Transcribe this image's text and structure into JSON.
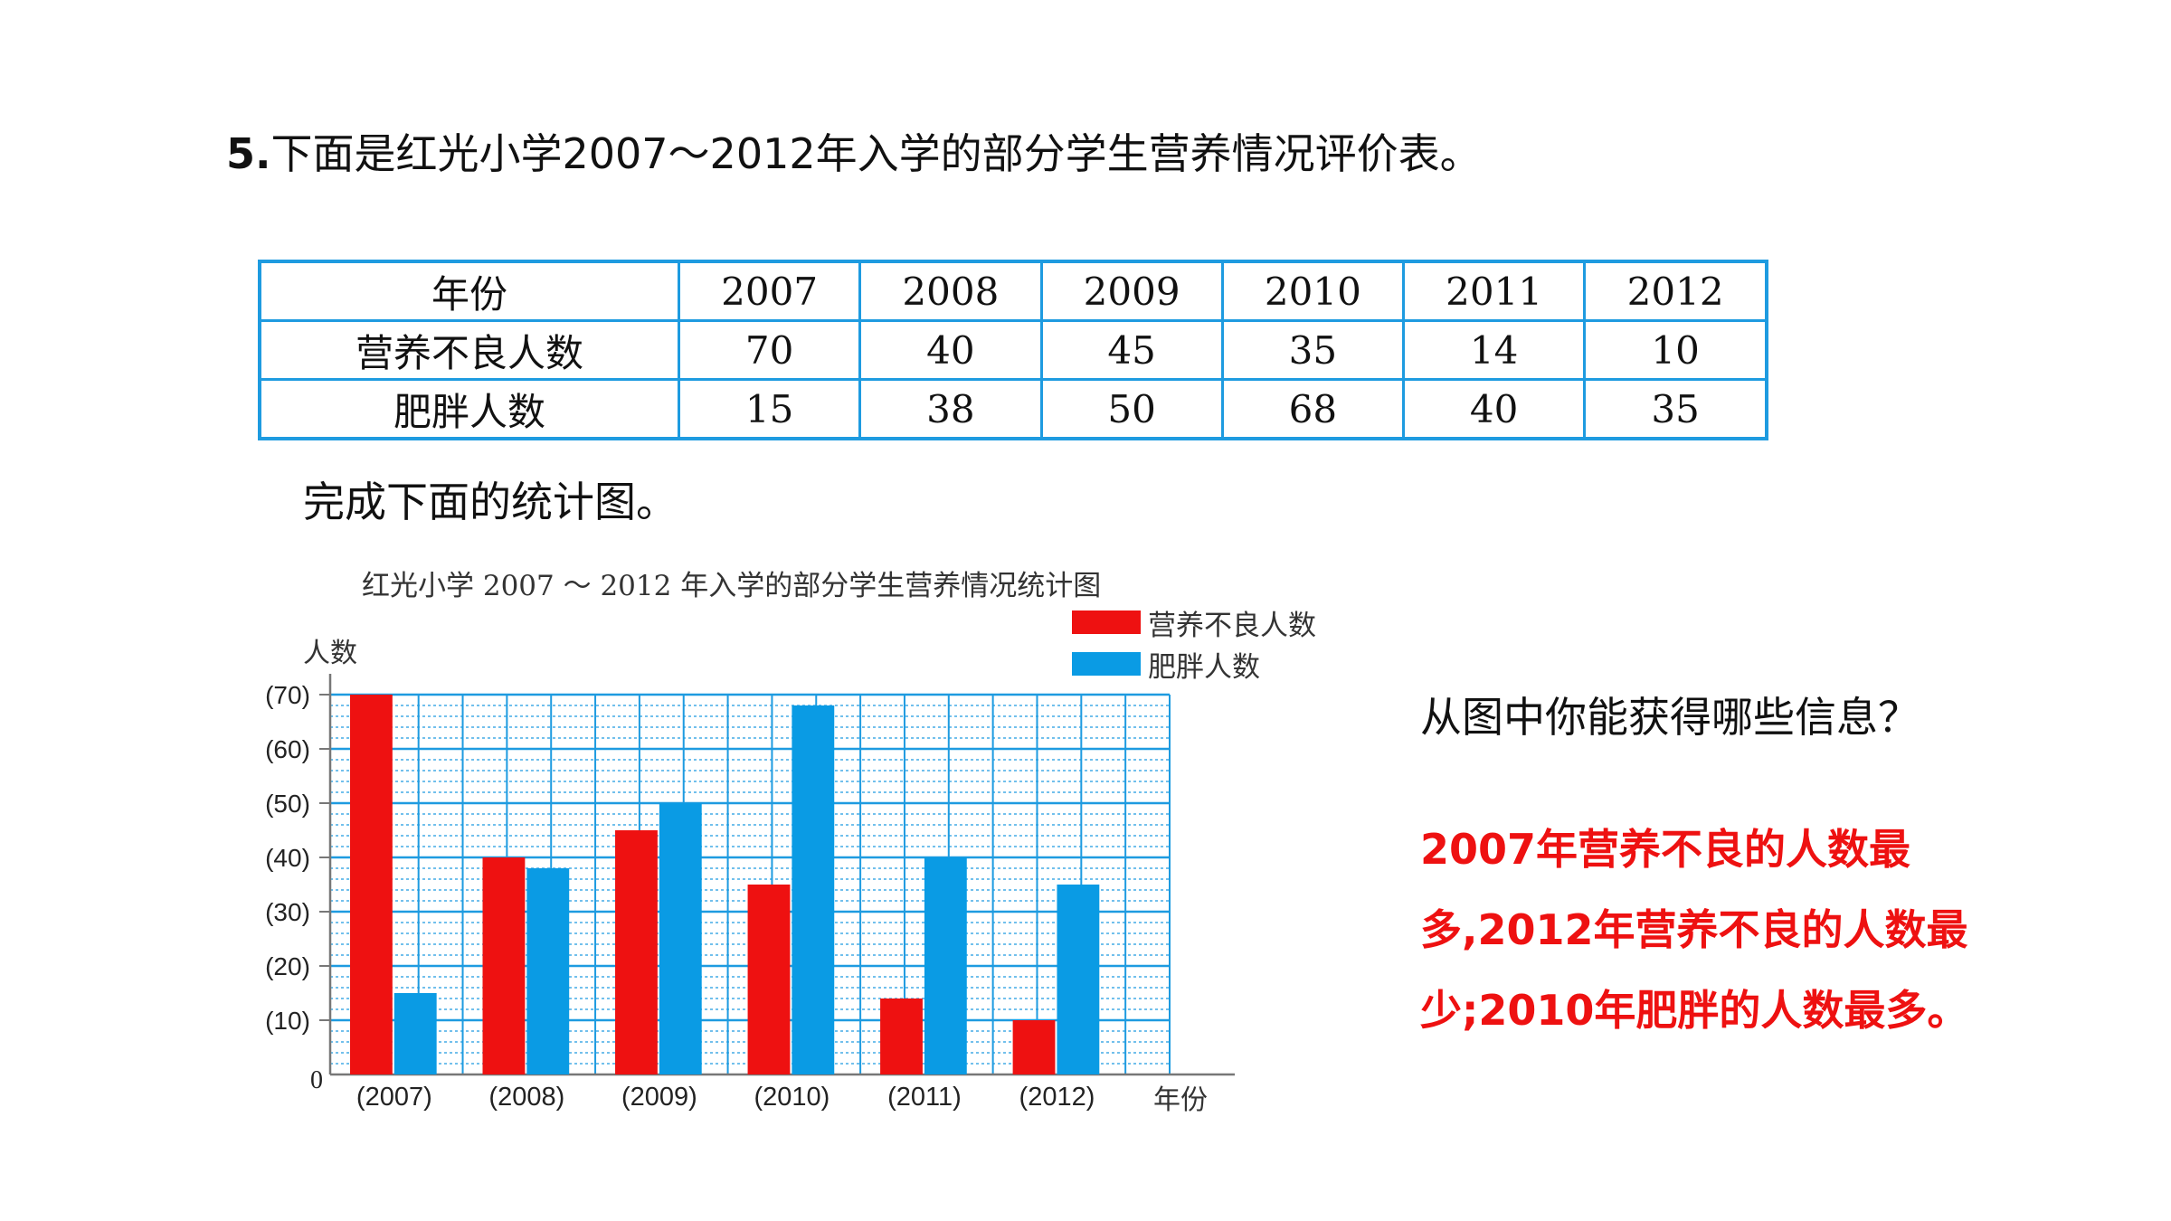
{
  "question": {
    "number": "5.",
    "text": "下面是红光小学2007～2012年入学的部分学生营养情况评价表。"
  },
  "table": {
    "header": [
      "年份",
      "2007",
      "2008",
      "2009",
      "2010",
      "2011",
      "2012"
    ],
    "rows": [
      [
        "营养不良人数",
        "70",
        "40",
        "45",
        "35",
        "14",
        "10"
      ],
      [
        "肥胖人数",
        "15",
        "38",
        "50",
        "68",
        "40",
        "35"
      ]
    ]
  },
  "subtitle": "完成下面的统计图。",
  "chart_data": {
    "type": "bar",
    "title": "红光小学 2007 ～ 2012 年入学的部分学生营养情况统计图",
    "ylabel": "人数",
    "xlabel": "年份",
    "categories": [
      "2007",
      "2008",
      "2009",
      "2010",
      "2011",
      "2012"
    ],
    "series": [
      {
        "name": "营养不良人数",
        "color": "#ee1111",
        "values": [
          70,
          40,
          45,
          35,
          14,
          10
        ]
      },
      {
        "name": "肥胖人数",
        "color": "#0a9be4",
        "values": [
          15,
          38,
          50,
          68,
          40,
          35
        ]
      }
    ],
    "ylim": [
      0,
      70
    ],
    "y_ticks": [
      10,
      20,
      30,
      40,
      50,
      60,
      70
    ],
    "origin_label": "0",
    "legend_position": "top-right",
    "grid": true,
    "grid_color": "#1e9be0"
  },
  "question2": "从图中你能获得哪些信息？",
  "answer": "2007年营养不良的人数最多,2012年营养不良的人数最少;2010年肥胖的人数最多。",
  "colors": {
    "answer": "#ee1111",
    "table_border": "#1e9be0"
  }
}
